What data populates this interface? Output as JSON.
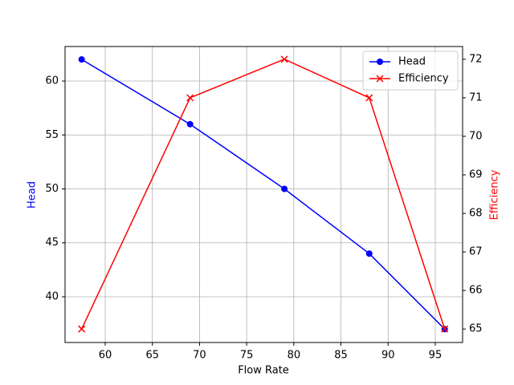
{
  "chart_data": {
    "type": "line",
    "xlabel": "Flow Rate",
    "ylabel": "Head",
    "y2label": "Efficiency",
    "x": [
      57.5,
      69,
      79,
      88,
      96
    ],
    "series": [
      {
        "name": "Head",
        "color": "#0000ff",
        "marker": "circle",
        "values": [
          62,
          56,
          50,
          44,
          37
        ]
      },
      {
        "name": "Efficiency",
        "color": "#ff0000",
        "marker": "x",
        "axis": "y2",
        "values": [
          65,
          71,
          72,
          71,
          65
        ]
      }
    ],
    "xlim": [
      55.74,
      97.9
    ],
    "xticks": [
      60,
      65,
      70,
      75,
      80,
      85,
      90,
      95
    ],
    "ylim": [
      35.76,
      63.2
    ],
    "yticks": [
      40,
      45,
      50,
      55,
      60
    ],
    "y2lim": [
      64.65,
      72.33
    ],
    "y2ticks": [
      65,
      66,
      67,
      68,
      69,
      70,
      71,
      72
    ],
    "grid": true,
    "legend": "upper right"
  }
}
